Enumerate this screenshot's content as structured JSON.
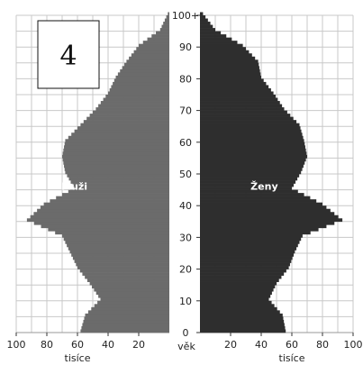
{
  "chart_data": {
    "type": "bar",
    "subtype": "population-pyramid",
    "panel_label": "4",
    "age_axis_label": "věk",
    "age_ticks": [
      "0",
      "10",
      "20",
      "30",
      "40",
      "50",
      "60",
      "70",
      "80",
      "90",
      "100+"
    ],
    "x_axis_label_left": "tisíce",
    "x_axis_label_right": "tisíce",
    "x_ticks_left": [
      "100",
      "80",
      "60",
      "40",
      "20"
    ],
    "x_ticks_right": [
      "20",
      "40",
      "60",
      "80",
      "100"
    ],
    "xlim": [
      0,
      100
    ],
    "ylim": [
      0,
      100
    ],
    "grid": true,
    "colors": {
      "male": "#6b6b6b",
      "female": "#2e2e2e",
      "grid": "#c8c8c8"
    },
    "series": [
      {
        "name": "Muži",
        "ages": [
          0,
          5,
          10,
          15,
          20,
          25,
          30,
          35,
          40,
          45,
          50,
          55,
          60,
          65,
          70,
          75,
          80,
          85,
          90,
          95,
          100
        ],
        "values": [
          58,
          55,
          45,
          52,
          60,
          65,
          70,
          93,
          82,
          62,
          68,
          70,
          68,
          58,
          48,
          40,
          35,
          28,
          20,
          6,
          1
        ]
      },
      {
        "name": "Ženy",
        "ages": [
          0,
          5,
          10,
          15,
          20,
          25,
          30,
          35,
          40,
          45,
          50,
          55,
          60,
          65,
          70,
          75,
          80,
          85,
          90,
          95,
          100
        ],
        "values": [
          56,
          54,
          45,
          50,
          58,
          62,
          67,
          93,
          80,
          60,
          66,
          70,
          68,
          65,
          55,
          48,
          40,
          38,
          28,
          10,
          2
        ]
      }
    ]
  }
}
